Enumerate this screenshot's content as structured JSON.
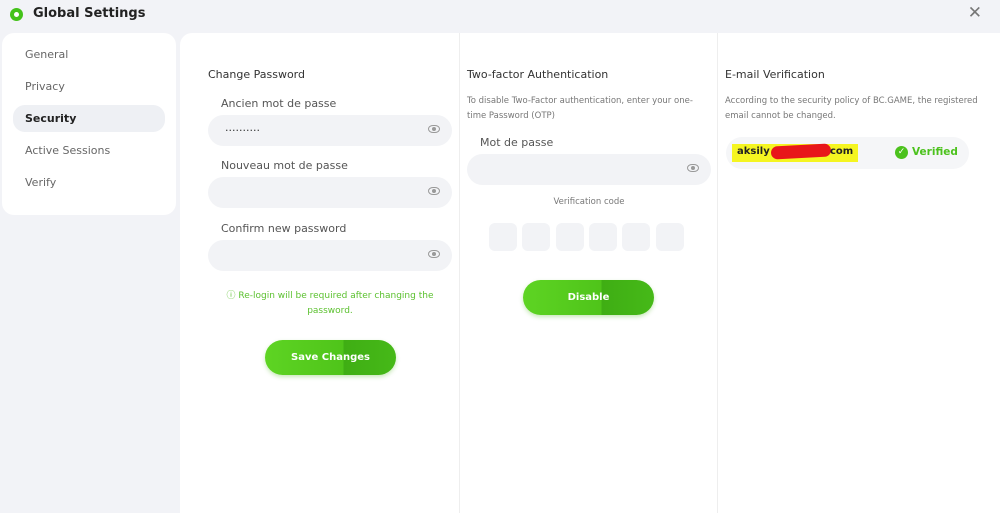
{
  "window": {
    "title": "Global Settings",
    "close": "✕"
  },
  "sidebar": {
    "items": [
      {
        "label": "General"
      },
      {
        "label": "Privacy"
      },
      {
        "label": "Security"
      },
      {
        "label": "Active Sessions"
      },
      {
        "label": "Verify"
      }
    ],
    "active": "Security"
  },
  "change_password": {
    "title": "Change Password",
    "old_label": "Ancien mot de passe",
    "old_value": "··········",
    "new_label": "Nouveau mot de passe",
    "new_value": "",
    "confirm_label": "Confirm new password",
    "confirm_value": "",
    "note": "Re-login will be required after changing the password.",
    "save": "Save Changes"
  },
  "two_factor": {
    "title": "Two-factor Authentication",
    "desc": "To disable Two-Factor authentication, enter your one-time Password (OTP)",
    "password_label": "Mot de passe",
    "password_value": "",
    "code_label": "Verification code",
    "disable": "Disable"
  },
  "email": {
    "title": "E-mail Verification",
    "desc": "According to the security policy of BC.GAME, the registered email cannot be changed.",
    "email_start": "aksily",
    "email_end": "com",
    "status": "Verified"
  },
  "colors": {
    "accent": "#4cc21d",
    "highlight": "#f5f521",
    "redaction": "#e8161a"
  }
}
